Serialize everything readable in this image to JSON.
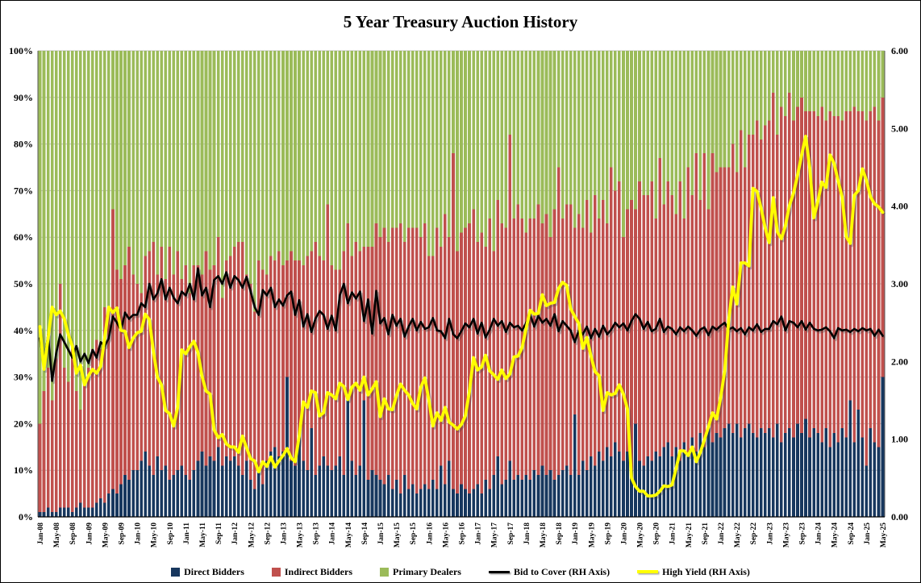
{
  "chart_data": {
    "type": "bar",
    "subtype": "stacked-100-bar-with-lines",
    "title": "5 Year Treasury Auction History",
    "n_points": 209,
    "x_tick_every": 4,
    "x_tick_labels": [
      "Jan-08",
      "May-08",
      "Sep-08",
      "Jan-09",
      "May-09",
      "Sep-09",
      "Jan-10",
      "May-10",
      "Sep-10",
      "Jan-11",
      "May-11",
      "Sep-11",
      "Jan-12",
      "May-12",
      "Sep-12",
      "Jan-13",
      "May-13",
      "Sep-13",
      "Jan-14",
      "May-14",
      "Sep-14",
      "Jan-15",
      "May-15",
      "Sep-15",
      "Jan-16",
      "May-16",
      "Sep-16",
      "Jan-17",
      "May-17",
      "Sep-17",
      "Jan-18",
      "May-18",
      "Sep-18",
      "Jan-19",
      "May-19",
      "Sep-19",
      "Jan-20",
      "May-20",
      "Sep-20",
      "Jan-21",
      "May-21",
      "Sep-21",
      "Jan-22",
      "May-22",
      "Sep-22",
      "Jan-23",
      "May-23",
      "Sep-23",
      "Jan-24",
      "May-24",
      "Sep-24",
      "Jan-25",
      "May-25"
    ],
    "left_axis": {
      "min": 0,
      "max": 100,
      "step": 10,
      "format": "percent",
      "labels": [
        "0%",
        "10%",
        "20%",
        "30%",
        "40%",
        "50%",
        "60%",
        "70%",
        "80%",
        "90%",
        "100%"
      ]
    },
    "right_axis": {
      "min": 0,
      "max": 6,
      "step": 1,
      "format": "2dp",
      "labels": [
        "0.00",
        "1.00",
        "2.00",
        "3.00",
        "4.00",
        "5.00",
        "6.00"
      ]
    },
    "background_color": "#FFFFFF",
    "gridline_color": "#BFBFBF",
    "stacked_to": 100,
    "bar_series": [
      {
        "name": "Direct Bidders",
        "color": "#17375E",
        "axis": "left",
        "values": [
          1,
          1,
          2,
          1,
          1,
          2,
          2,
          2,
          1,
          2,
          3,
          2,
          2,
          2,
          3,
          4,
          3,
          5,
          6,
          5,
          7,
          9,
          8,
          10,
          10,
          12,
          14,
          11,
          9,
          13,
          10,
          11,
          8,
          9,
          10,
          11,
          9,
          8,
          10,
          12,
          14,
          11,
          13,
          12,
          15,
          11,
          13,
          12,
          13,
          11,
          9,
          12,
          8,
          6,
          10,
          7,
          12,
          14,
          15,
          13,
          14,
          30,
          12,
          11,
          17,
          12,
          10,
          19,
          9,
          11,
          13,
          11,
          10,
          11,
          13,
          9,
          26,
          12,
          9,
          11,
          25,
          8,
          10,
          9,
          8,
          7,
          9,
          6,
          8,
          5,
          9,
          6,
          7,
          5,
          6,
          7,
          6,
          8,
          6,
          11,
          7,
          12,
          6,
          5,
          7,
          6,
          5,
          6,
          7,
          5,
          8,
          6,
          9,
          13,
          7,
          8,
          12,
          8,
          9,
          8,
          9,
          8,
          10,
          9,
          11,
          9,
          10,
          8,
          9,
          10,
          11,
          9,
          22,
          9,
          12,
          10,
          13,
          11,
          14,
          12,
          15,
          13,
          16,
          14,
          12,
          14,
          10,
          20,
          12,
          11,
          13,
          12,
          14,
          13,
          15,
          16,
          13,
          15,
          12,
          16,
          13,
          17,
          14,
          18,
          15,
          19,
          16,
          18,
          17,
          19,
          20,
          18,
          20,
          17,
          19,
          20,
          18,
          17,
          19,
          18,
          19,
          17,
          20,
          16,
          18,
          19,
          17,
          20,
          18,
          21,
          17,
          19,
          18,
          16,
          19,
          15,
          18,
          16,
          19,
          17,
          25,
          16,
          23,
          17,
          11,
          19,
          16,
          15,
          30
        ]
      },
      {
        "name": "Indirect Bidders",
        "color": "#C0504D",
        "axis": "left",
        "values": [
          19,
          26,
          30,
          24,
          33,
          48,
          30,
          27,
          35,
          25,
          20,
          27,
          30,
          34,
          35,
          32,
          42,
          40,
          60,
          48,
          44,
          45,
          50,
          42,
          40,
          36,
          42,
          46,
          50,
          39,
          48,
          40,
          50,
          43,
          47,
          40,
          45,
          40,
          44,
          42,
          38,
          46,
          40,
          42,
          45,
          36,
          42,
          44,
          45,
          48,
          50,
          40,
          42,
          38,
          45,
          46,
          40,
          42,
          40,
          44,
          40,
          25,
          45,
          44,
          38,
          42,
          46,
          38,
          50,
          45,
          42,
          56,
          44,
          42,
          40,
          48,
          37,
          44,
          50,
          46,
          33,
          50,
          48,
          54,
          52,
          55,
          50,
          56,
          54,
          58,
          50,
          56,
          55,
          57,
          54,
          56,
          50,
          48,
          56,
          47,
          58,
          48,
          72,
          52,
          54,
          56,
          58,
          60,
          52,
          56,
          50,
          58,
          48,
          55,
          56,
          54,
          70,
          56,
          58,
          56,
          52,
          56,
          54,
          58,
          52,
          56,
          50,
          58,
          66,
          54,
          56,
          58,
          40,
          56,
          50,
          58,
          48,
          58,
          50,
          56,
          48,
          62,
          54,
          58,
          48,
          52,
          58,
          46,
          60,
          58,
          56,
          60,
          50,
          64,
          52,
          56,
          56,
          50,
          60,
          48,
          62,
          52,
          64,
          50,
          63,
          47,
          62,
          56,
          58,
          56,
          55,
          62,
          54,
          66,
          56,
          62,
          64,
          68,
          62,
          66,
          66,
          74,
          62,
          72,
          68,
          72,
          68,
          68,
          72,
          66,
          70,
          68,
          68,
          72,
          66,
          72,
          68,
          70,
          66,
          70,
          62,
          72,
          64,
          70,
          74,
          68,
          72,
          70,
          60
        ]
      },
      {
        "name": "Primary Dealers",
        "color": "#9BBB59",
        "axis": "left",
        "computed_as": "100 - direct - indirect"
      }
    ],
    "line_series": [
      {
        "name": "Bid to Cover (RH Axis)",
        "color": "#000000",
        "axis": "right",
        "values": [
          2.3,
          1.95,
          2.35,
          1.75,
          2.1,
          2.35,
          2.25,
          2.15,
          2.05,
          2.2,
          2.0,
          2.1,
          1.98,
          2.15,
          2.05,
          2.25,
          2.2,
          2.3,
          2.58,
          2.5,
          2.4,
          2.63,
          2.55,
          2.6,
          2.6,
          2.75,
          2.7,
          3.0,
          2.8,
          2.88,
          3.06,
          2.8,
          2.95,
          2.82,
          2.75,
          2.9,
          2.85,
          3.0,
          2.8,
          3.2,
          2.85,
          2.95,
          2.7,
          3.05,
          3.1,
          3.0,
          3.15,
          2.95,
          3.1,
          3.05,
          2.95,
          3.09,
          2.9,
          2.7,
          2.6,
          2.92,
          2.85,
          2.95,
          2.7,
          2.8,
          2.72,
          2.85,
          2.9,
          2.6,
          2.79,
          2.45,
          2.61,
          2.38,
          2.55,
          2.65,
          2.6,
          2.42,
          2.59,
          2.4,
          2.85,
          3.0,
          2.75,
          2.89,
          2.81,
          2.9,
          2.52,
          2.8,
          2.36,
          2.91,
          2.49,
          2.56,
          2.35,
          2.6,
          2.46,
          2.55,
          2.32,
          2.45,
          2.55,
          2.4,
          2.51,
          2.42,
          2.44,
          2.56,
          2.4,
          2.39,
          2.3,
          2.55,
          2.35,
          2.3,
          2.39,
          2.49,
          2.44,
          2.55,
          2.36,
          2.5,
          2.31,
          2.41,
          2.55,
          2.46,
          2.52,
          2.38,
          2.5,
          2.44,
          2.46,
          2.4,
          2.5,
          2.6,
          2.45,
          2.59,
          2.5,
          2.55,
          2.46,
          2.61,
          2.39,
          2.52,
          2.46,
          2.4,
          2.25,
          2.4,
          2.35,
          2.45,
          2.3,
          2.42,
          2.32,
          2.46,
          2.35,
          2.41,
          2.5,
          2.44,
          2.49,
          2.4,
          2.52,
          2.61,
          2.55,
          2.42,
          2.51,
          2.39,
          2.42,
          2.55,
          2.38,
          2.45,
          2.42,
          2.35,
          2.44,
          2.39,
          2.45,
          2.4,
          2.33,
          2.41,
          2.44,
          2.34,
          2.45,
          2.41,
          2.46,
          2.5,
          2.41,
          2.44,
          2.39,
          2.43,
          2.35,
          2.44,
          2.4,
          2.48,
          2.38,
          2.42,
          2.42,
          2.52,
          2.48,
          2.58,
          2.4,
          2.52,
          2.5,
          2.44,
          2.52,
          2.41,
          2.5,
          2.42,
          2.4,
          2.41,
          2.44,
          2.39,
          2.3,
          2.43,
          2.4,
          2.41,
          2.38,
          2.42,
          2.39,
          2.43,
          2.4,
          2.42,
          2.33,
          2.41,
          2.33
        ]
      },
      {
        "name": "High Yield (RH Axis)",
        "color": "#FFFF00",
        "axis": "right",
        "values": [
          2.45,
          1.9,
          2.3,
          2.7,
          2.6,
          2.65,
          2.55,
          2.35,
          2.2,
          1.85,
          1.95,
          1.7,
          1.82,
          1.9,
          1.85,
          1.94,
          2.31,
          2.7,
          2.63,
          2.69,
          2.4,
          2.39,
          2.18,
          2.3,
          2.37,
          2.39,
          2.61,
          2.54,
          2.13,
          1.8,
          1.7,
          1.37,
          1.33,
          1.17,
          1.41,
          2.15,
          2.1,
          2.19,
          2.26,
          2.12,
          1.81,
          1.62,
          1.58,
          1.12,
          1.02,
          1.06,
          0.94,
          0.9,
          0.9,
          0.83,
          1.04,
          0.89,
          0.75,
          0.72,
          0.58,
          0.71,
          0.65,
          0.77,
          0.64,
          0.72,
          0.79,
          0.88,
          0.76,
          0.71,
          1.04,
          1.48,
          1.41,
          1.62,
          1.6,
          1.3,
          1.34,
          1.6,
          1.57,
          1.52,
          1.72,
          1.68,
          1.51,
          1.67,
          1.72,
          1.63,
          1.8,
          1.57,
          1.65,
          1.74,
          1.29,
          1.52,
          1.39,
          1.38,
          1.56,
          1.71,
          1.63,
          1.57,
          1.46,
          1.39,
          1.67,
          1.79,
          1.5,
          1.17,
          1.34,
          1.24,
          1.41,
          1.22,
          1.18,
          1.13,
          1.19,
          1.3,
          1.61,
          2.05,
          1.89,
          1.93,
          2.08,
          1.88,
          1.83,
          1.77,
          1.89,
          1.78,
          1.84,
          2.06,
          2.07,
          2.18,
          2.43,
          2.66,
          2.61,
          2.62,
          2.86,
          2.72,
          2.75,
          2.76,
          2.94,
          3.02,
          2.98,
          2.68,
          2.58,
          2.49,
          2.17,
          2.31,
          2.07,
          1.87,
          1.82,
          1.37,
          1.6,
          1.57,
          1.59,
          1.7,
          1.58,
          1.39,
          0.5,
          0.39,
          0.33,
          0.33,
          0.27,
          0.27,
          0.28,
          0.33,
          0.4,
          0.39,
          0.41,
          0.62,
          0.85,
          0.85,
          0.79,
          0.9,
          0.71,
          0.83,
          0.99,
          1.16,
          1.34,
          1.26,
          1.53,
          1.88,
          2.54,
          2.96,
          2.74,
          3.27,
          3.27,
          3.23,
          4.23,
          4.19,
          3.97,
          3.72,
          3.53,
          4.11,
          3.67,
          3.58,
          3.75,
          4.01,
          4.17,
          4.4,
          4.66,
          4.9,
          4.49,
          3.85,
          4.06,
          4.31,
          4.24,
          4.66,
          4.55,
          4.33,
          4.12,
          3.61,
          3.52,
          4.14,
          4.2,
          4.48,
          4.33,
          4.12,
          4.03,
          3.99,
          3.92
        ]
      }
    ],
    "legend_position": "bottom"
  }
}
